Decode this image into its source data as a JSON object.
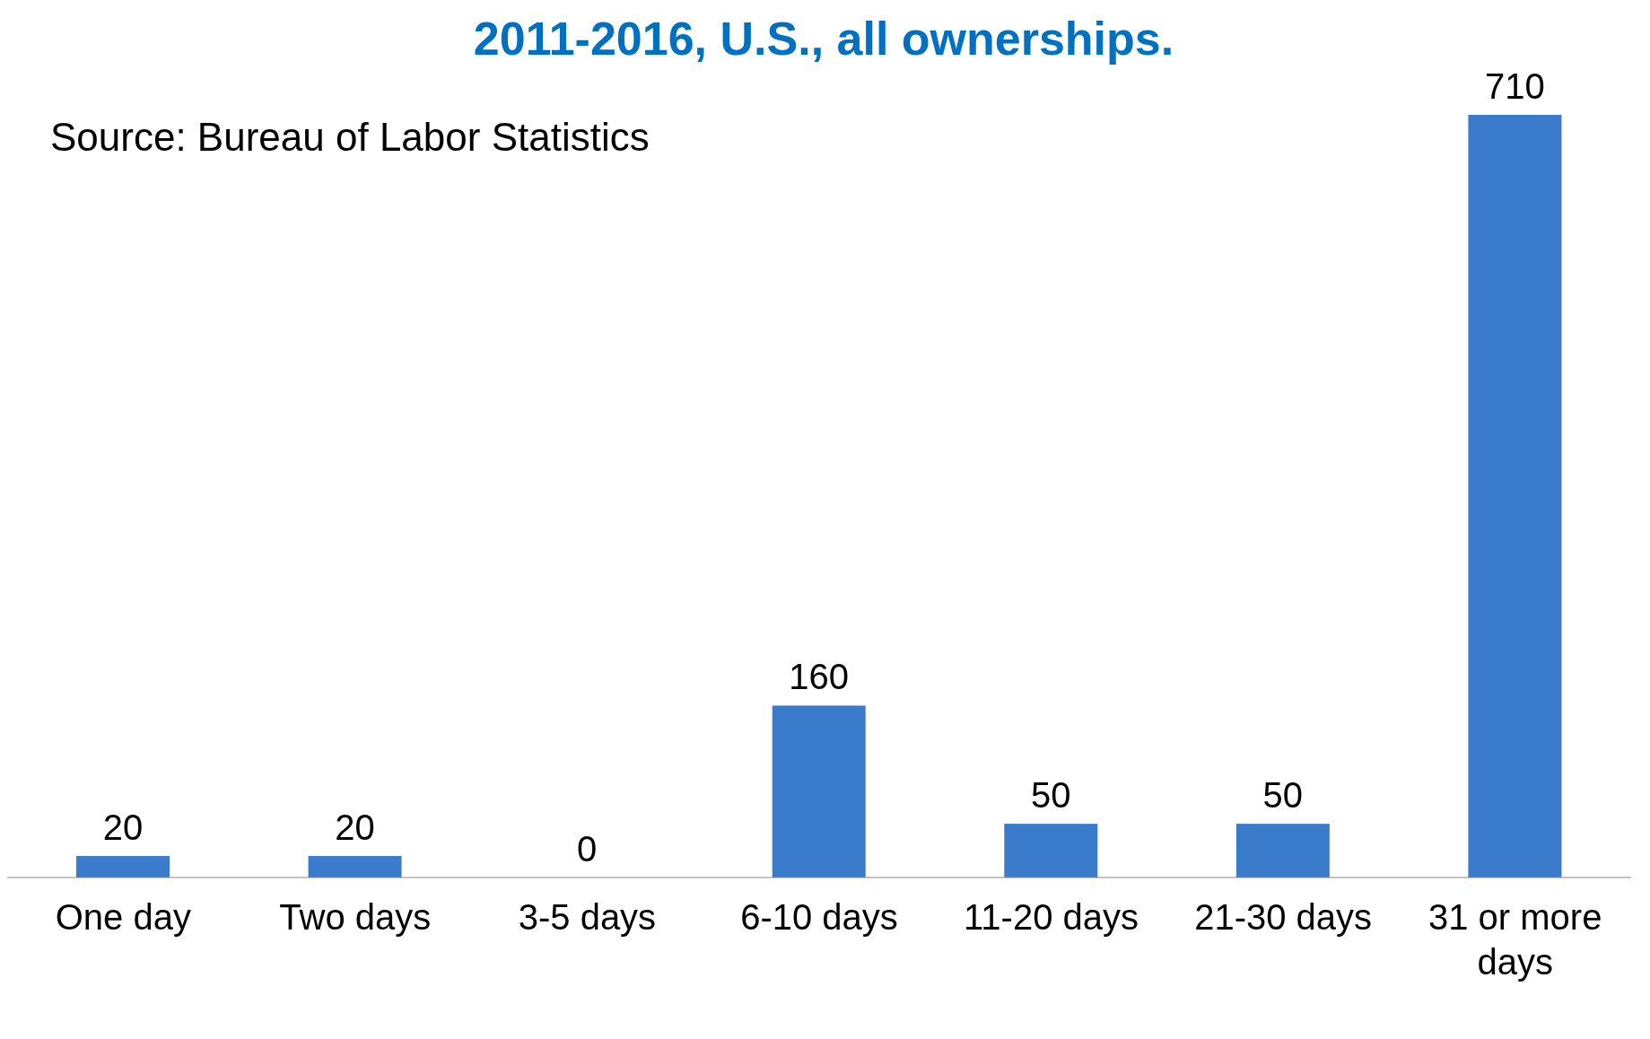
{
  "chart_data": {
    "type": "bar",
    "title": "2011-2016, U.S., all ownerships.",
    "annotations": [
      "Source: Bureau of Labor Statistics"
    ],
    "categories": [
      "One day",
      "Two days",
      "3-5 days",
      "6-10 days",
      "11-20 days",
      "21-30 days",
      "31 or more days"
    ],
    "values": [
      20,
      20,
      0,
      160,
      50,
      50,
      710
    ],
    "color": "#3b7bcc",
    "data_labels": true,
    "grid": false,
    "legend": false
  }
}
